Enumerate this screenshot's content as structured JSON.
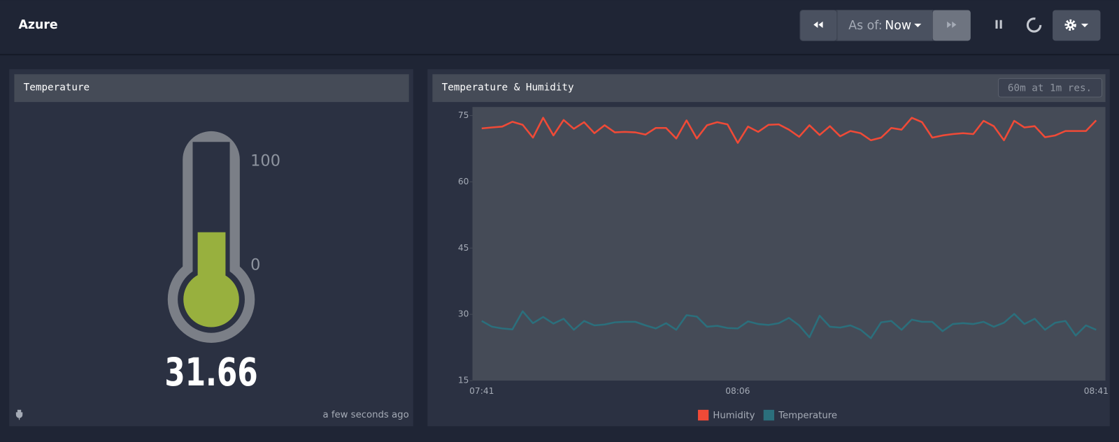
{
  "header": {
    "title": "Azure",
    "as_of_label": "As of:",
    "as_of_value": "Now"
  },
  "gauge": {
    "title": "Temperature",
    "value": 31.66,
    "range": [
      0,
      100
    ],
    "ticks": [
      100,
      0
    ],
    "footer": "a few seconds ago"
  },
  "chart_data": {
    "type": "line",
    "title": "Temperature & Humidity",
    "badge": "60m at 1m res.",
    "categories": [
      "07:41",
      null,
      null,
      null,
      null,
      null,
      null,
      null,
      null,
      null,
      null,
      null,
      null,
      null,
      null,
      null,
      null,
      null,
      null,
      null,
      null,
      null,
      null,
      null,
      null,
      "08:06",
      null,
      null,
      null,
      null,
      null,
      null,
      null,
      null,
      null,
      null,
      null,
      null,
      null,
      null,
      null,
      null,
      null,
      null,
      null,
      null,
      null,
      null,
      null,
      null,
      null,
      null,
      null,
      null,
      null,
      null,
      null,
      null,
      null,
      null,
      "08:41"
    ],
    "ylim": [
      15,
      75
    ],
    "yticks": [
      15,
      30,
      45,
      60,
      75
    ],
    "legend": "bottom",
    "series": [
      {
        "name": "Humidity",
        "color": "#f04a37",
        "values": [
          72.1,
          72.3,
          72.5,
          73.6,
          72.9,
          70.0,
          74.5,
          70.5,
          74.0,
          72.0,
          73.5,
          71.0,
          72.8,
          71.2,
          71.3,
          71.2,
          70.7,
          72.2,
          72.2,
          69.8,
          73.9,
          69.8,
          72.8,
          73.5,
          73.0,
          68.8,
          72.5,
          71.3,
          72.9,
          73.0,
          71.8,
          70.2,
          72.8,
          70.6,
          72.6,
          70.3,
          71.5,
          71.0,
          69.4,
          70.0,
          72.2,
          71.8,
          74.5,
          73.5,
          70.0,
          70.5,
          70.8,
          71.0,
          70.8,
          73.8,
          72.6,
          69.4,
          73.8,
          72.3,
          72.6,
          70.1,
          70.5,
          71.5,
          71.5,
          71.5,
          73.9
        ]
      },
      {
        "name": "Temperature",
        "color": "#2b6f7c",
        "values": [
          28.5,
          27.2,
          26.8,
          26.6,
          30.7,
          28.0,
          29.4,
          27.9,
          29.0,
          26.5,
          28.5,
          27.5,
          27.7,
          28.2,
          28.3,
          28.3,
          27.5,
          26.8,
          28.0,
          26.5,
          29.8,
          29.5,
          27.2,
          27.4,
          26.9,
          26.8,
          28.4,
          27.8,
          27.6,
          28.0,
          29.2,
          27.5,
          24.8,
          29.7,
          27.2,
          27.0,
          27.5,
          26.5,
          24.6,
          28.2,
          28.5,
          26.5,
          28.8,
          28.3,
          28.3,
          26.2,
          27.8,
          28.0,
          27.8,
          28.3,
          27.2,
          28.1,
          30.1,
          27.8,
          29.0,
          26.5,
          28.1,
          28.5,
          25.2,
          27.5,
          26.5
        ]
      }
    ]
  }
}
